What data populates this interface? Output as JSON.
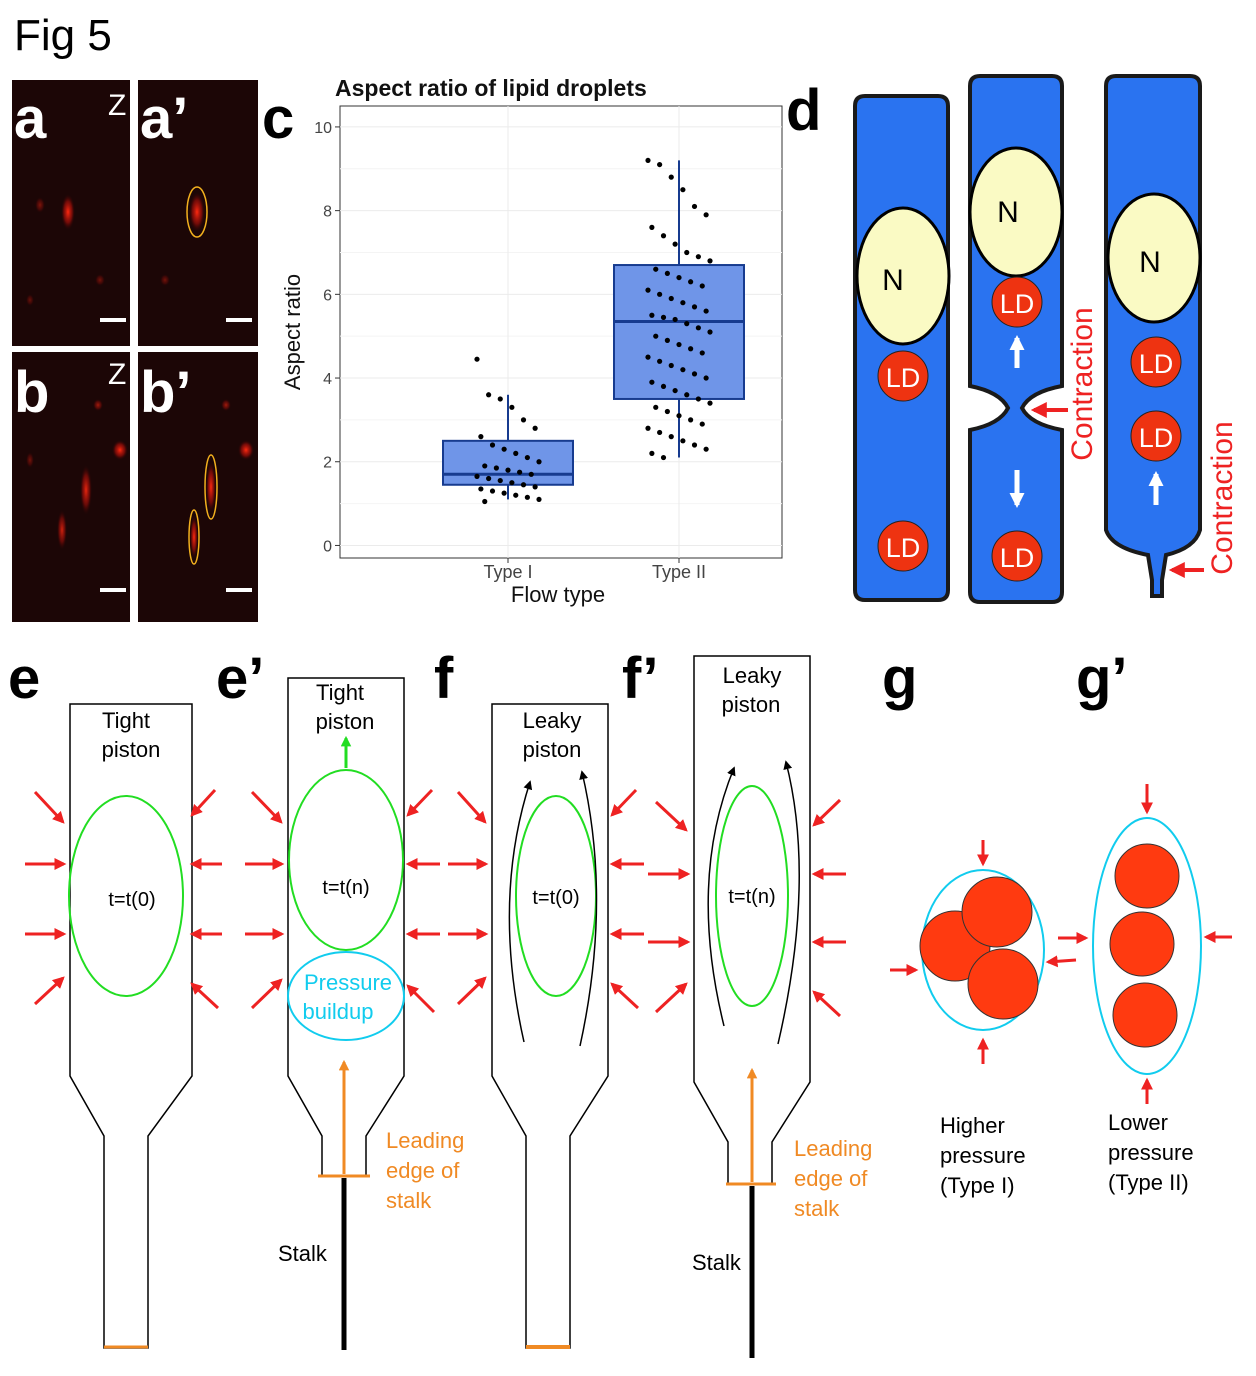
{
  "figure": {
    "title": "Fig 5"
  },
  "panel_letters": {
    "a": "a",
    "a_prime": "a’",
    "b": "b",
    "b_prime": "b’",
    "c": "c",
    "d": "d",
    "e": "e",
    "e_prime": "e’",
    "f": "f",
    "f_prime": "f’",
    "g": "g",
    "g_prime": "g’"
  },
  "microscopy": {
    "z_label": "Z"
  },
  "chart_data": {
    "type": "box",
    "title": "Aspect ratio of lipid droplets",
    "xlabel": "Flow type",
    "ylabel": "Aspect ratio",
    "ylim": [
      -0.3,
      10.5
    ],
    "yticks": [
      0,
      2,
      4,
      6,
      8,
      10
    ],
    "grid": true,
    "categories": [
      "Type I",
      "Type II"
    ],
    "boxes": [
      {
        "category": "Type I",
        "whisker_low": 1.1,
        "q1": 1.45,
        "median": 1.7,
        "q3": 2.5,
        "whisker_high": 3.6
      },
      {
        "category": "Type II",
        "whisker_low": 2.1,
        "q1": 3.5,
        "median": 5.35,
        "q3": 6.7,
        "whisker_high": 9.2
      }
    ],
    "points": [
      {
        "category": "Type I",
        "values": [
          4.45,
          3.6,
          3.5,
          3.3,
          3.0,
          2.8,
          2.6,
          2.4,
          2.3,
          2.2,
          2.1,
          2.0,
          1.9,
          1.85,
          1.8,
          1.75,
          1.7,
          1.65,
          1.6,
          1.55,
          1.5,
          1.45,
          1.4,
          1.35,
          1.3,
          1.25,
          1.2,
          1.15,
          1.1,
          1.05
        ]
      },
      {
        "category": "Type II",
        "values": [
          9.2,
          9.1,
          8.8,
          8.5,
          8.1,
          7.9,
          7.6,
          7.4,
          7.2,
          7.0,
          6.9,
          6.8,
          6.6,
          6.5,
          6.4,
          6.3,
          6.2,
          6.1,
          6.0,
          5.9,
          5.8,
          5.7,
          5.6,
          5.5,
          5.45,
          5.4,
          5.3,
          5.2,
          5.1,
          5.0,
          4.9,
          4.8,
          4.7,
          4.6,
          4.5,
          4.4,
          4.3,
          4.2,
          4.1,
          4.0,
          3.9,
          3.8,
          3.7,
          3.6,
          3.5,
          3.4,
          3.3,
          3.2,
          3.1,
          3.0,
          2.9,
          2.8,
          2.7,
          2.6,
          2.5,
          2.4,
          2.3,
          2.2,
          2.1
        ]
      }
    ],
    "colors": {
      "box_fill": "#6f95e8",
      "box_stroke": "#173b8f",
      "points": "#000000"
    }
  },
  "panel_d": {
    "nucleus_label": "N",
    "droplet_label": "LD",
    "contraction_label": "Contraction",
    "colors": {
      "cell": "#2a73f0",
      "nucleus": "#fafac4",
      "droplet": "#ee3311",
      "arrow": "#ee2222"
    }
  },
  "panel_e": {
    "piston_line1": "Tight",
    "piston_line2": "piston",
    "time_label": "t=t(0)"
  },
  "panel_e_prime": {
    "piston_line1": "Tight",
    "piston_line2": "piston",
    "time_label": "t=t(n)",
    "pressure_line1": "Pressure",
    "pressure_line2": "buildup",
    "leading_line1": "Leading",
    "leading_line2": "edge of",
    "leading_line3": "stalk",
    "stalk_label": "Stalk"
  },
  "panel_f": {
    "piston_line1": "Leaky",
    "piston_line2": "piston",
    "time_label": "t=t(0)"
  },
  "panel_f_prime": {
    "piston_line1": "Leaky",
    "piston_line2": "piston",
    "time_label": "t=t(n)",
    "leading_line1": "Leading",
    "leading_line2": "edge of",
    "leading_line3": "stalk",
    "stalk_label": "Stalk"
  },
  "panel_g": {
    "line1": "Higher",
    "line2": "pressure",
    "line3": "(Type I)"
  },
  "panel_g_prime": {
    "line1": "Lower",
    "line2": "pressure",
    "line3": "(Type II)"
  },
  "colors": {
    "accent_green": "#22dd22",
    "accent_cyan": "#11ccee",
    "accent_orange": "#f08a24",
    "accent_red": "#ee2222",
    "droplet_red": "#ff3a10"
  }
}
